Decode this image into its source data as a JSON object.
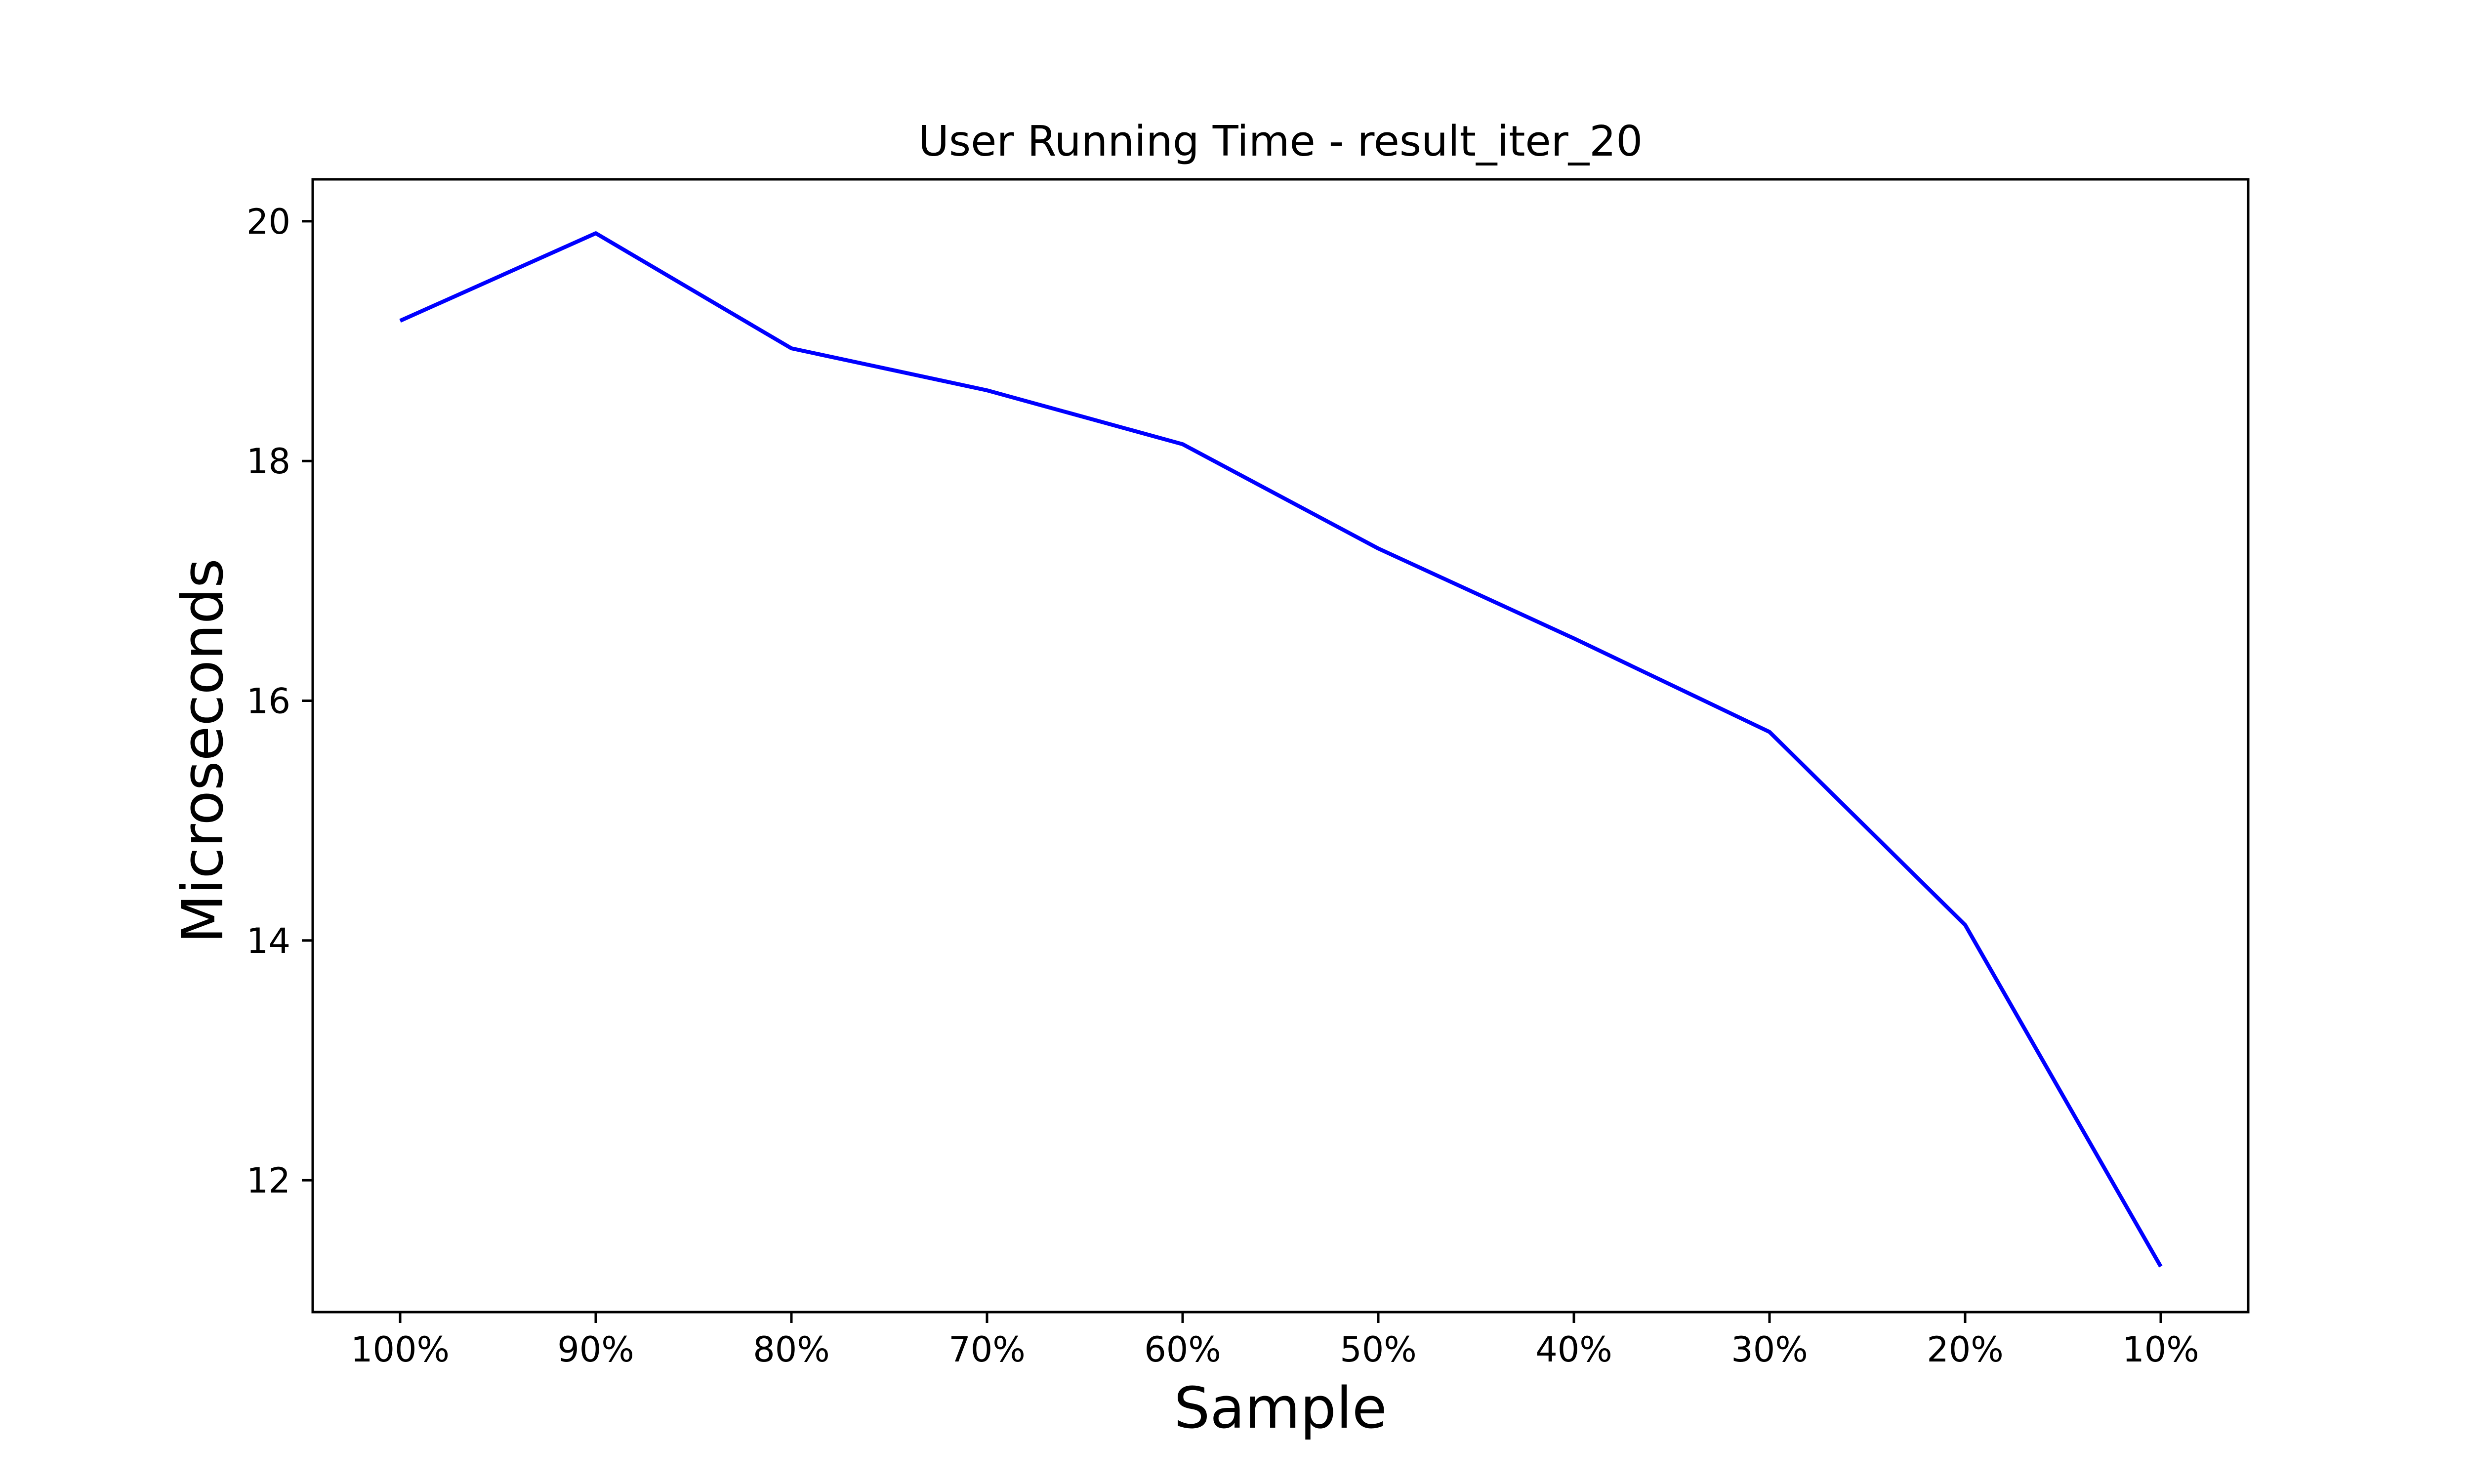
{
  "chart_data": {
    "type": "line",
    "title": "User Running Time - result_iter_20",
    "xlabel": "Sample",
    "ylabel": "Microseconds",
    "categories": [
      "100%",
      "90%",
      "80%",
      "70%",
      "60%",
      "50%",
      "40%",
      "30%",
      "20%",
      "10%"
    ],
    "series": [
      {
        "values": [
          19.17,
          19.9,
          18.94,
          18.59,
          18.14,
          17.27,
          16.52,
          15.74,
          14.13,
          11.28
        ],
        "color": "#0000ff"
      }
    ],
    "ylim": [
      10.9,
      20.35
    ],
    "yticks": [
      12,
      14,
      16,
      18,
      20
    ],
    "grid": false,
    "legend": "none"
  }
}
